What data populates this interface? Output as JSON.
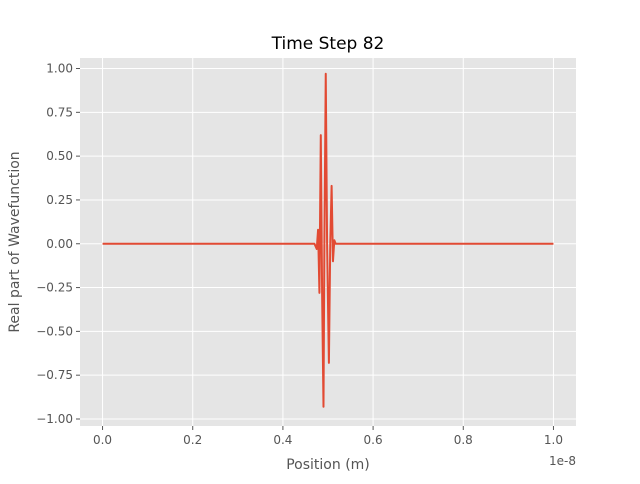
{
  "chart_data": {
    "type": "line",
    "title": "Time Step 82",
    "xlabel": "Position (m)",
    "ylabel": "Real part of Wavefunction",
    "x_offset_label": "1e-8",
    "xlim": [
      -0.05,
      1.05
    ],
    "ylim": [
      -1.04,
      1.06
    ],
    "x_ticks": [
      0.0,
      0.2,
      0.4,
      0.6,
      0.8,
      1.0
    ],
    "x_tick_labels": [
      "0.0",
      "0.2",
      "0.4",
      "0.6",
      "0.8",
      "1.0"
    ],
    "y_ticks": [
      -1.0,
      -0.75,
      -0.5,
      -0.25,
      0.0,
      0.25,
      0.5,
      0.75,
      1.0
    ],
    "y_tick_labels": [
      "−1.00",
      "−0.75",
      "−0.50",
      "−0.25",
      "0.00",
      "0.25",
      "0.50",
      "0.75",
      "1.00"
    ],
    "grid": true,
    "colors": {
      "line": "#E24A33",
      "axes_bg": "#E5E5E5",
      "grid": "#FFFFFF",
      "text": "#555555",
      "title": "#000000"
    },
    "series": [
      {
        "x": [
          0.0,
          0.46,
          0.47,
          0.475,
          0.478,
          0.481,
          0.484,
          0.487,
          0.49,
          0.492,
          0.495,
          0.498,
          0.502,
          0.505,
          0.508,
          0.511,
          0.514,
          0.517,
          0.52,
          0.523,
          0.526,
          0.53,
          0.54,
          1.0
        ],
        "values": [
          0.0,
          0.0,
          0.0,
          -0.03,
          0.08,
          -0.28,
          0.62,
          -0.3,
          -0.93,
          0.0,
          0.97,
          0.0,
          -0.68,
          0.0,
          0.33,
          -0.1,
          0.02,
          0.0,
          0.0,
          0.0,
          0.0,
          0.0,
          0.0,
          0.0
        ]
      }
    ]
  }
}
